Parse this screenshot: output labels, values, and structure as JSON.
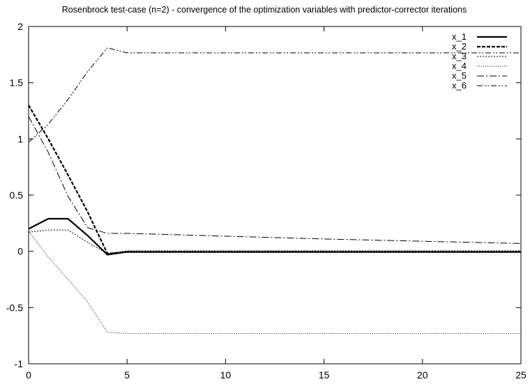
{
  "chart_data": {
    "type": "line",
    "title": "Rosenbrock test-case (n=2) - convergence of the optimization variables with predictor-corrector iterations",
    "xlabel": "",
    "ylabel": "",
    "xlim": [
      0,
      25
    ],
    "ylim": [
      -1,
      2
    ],
    "x_ticks": [
      0,
      5,
      10,
      15,
      20,
      25
    ],
    "y_ticks": [
      -1,
      -0.5,
      0,
      0.5,
      1,
      1.5,
      2
    ],
    "x_tick_labels": [
      "0",
      "5",
      "10",
      "15",
      "20",
      "25"
    ],
    "y_tick_labels": [
      "-1",
      "-0.5",
      "0",
      "0.5",
      "1",
      "1.5",
      "2"
    ],
    "grid": false,
    "legend_position": "top-right",
    "series": [
      {
        "name": "x_1",
        "style": "solid-thick",
        "x": [
          0,
          1,
          2,
          3,
          4,
          5,
          6,
          8,
          10,
          12,
          15,
          20,
          25
        ],
        "y": [
          0.2,
          0.29,
          0.29,
          0.14,
          -0.03,
          -0.005,
          -0.005,
          -0.005,
          -0.005,
          -0.005,
          -0.005,
          -0.005,
          -0.005
        ]
      },
      {
        "name": "x_2",
        "style": "dashed-thick",
        "x": [
          0,
          1,
          2,
          3,
          4,
          5,
          6,
          8,
          10,
          12,
          15,
          20,
          25
        ],
        "y": [
          1.3,
          1.0,
          0.68,
          0.35,
          -0.02,
          -0.005,
          -0.005,
          -0.005,
          -0.005,
          -0.005,
          -0.005,
          -0.005,
          -0.005
        ]
      },
      {
        "name": "x_3",
        "style": "dotted-fine",
        "x": [
          0,
          1,
          2,
          3,
          4,
          5,
          6,
          8,
          10,
          12,
          15,
          20,
          25
        ],
        "y": [
          0.17,
          0.19,
          0.19,
          0.08,
          -0.02,
          0.005,
          0.005,
          0.005,
          0.005,
          0.005,
          0.005,
          0.005,
          0.005
        ]
      },
      {
        "name": "x_4",
        "style": "dotted",
        "x": [
          0,
          1,
          2,
          3,
          4,
          5,
          6,
          8,
          10,
          12,
          15,
          20,
          25
        ],
        "y": [
          0.18,
          -0.05,
          -0.25,
          -0.45,
          -0.72,
          -0.73,
          -0.73,
          -0.73,
          -0.73,
          -0.73,
          -0.73,
          -0.73,
          -0.73
        ]
      },
      {
        "name": "x_5",
        "style": "dash-dot",
        "x": [
          0,
          1,
          2,
          3,
          4,
          5,
          6,
          8,
          10,
          12,
          15,
          20,
          25
        ],
        "y": [
          1.2,
          0.88,
          0.49,
          0.21,
          0.16,
          0.16,
          0.155,
          0.145,
          0.135,
          0.125,
          0.11,
          0.09,
          0.07
        ]
      },
      {
        "name": "x_6",
        "style": "dash-dot-dot",
        "x": [
          0,
          1,
          2,
          3,
          4,
          5,
          6,
          8,
          10,
          12,
          15,
          20,
          25
        ],
        "y": [
          0.97,
          1.13,
          1.35,
          1.6,
          1.81,
          1.765,
          1.765,
          1.765,
          1.765,
          1.765,
          1.765,
          1.765,
          1.765
        ]
      }
    ],
    "colors": {
      "line": "#000000",
      "axes": "#000000",
      "background": "#ffffff"
    }
  }
}
